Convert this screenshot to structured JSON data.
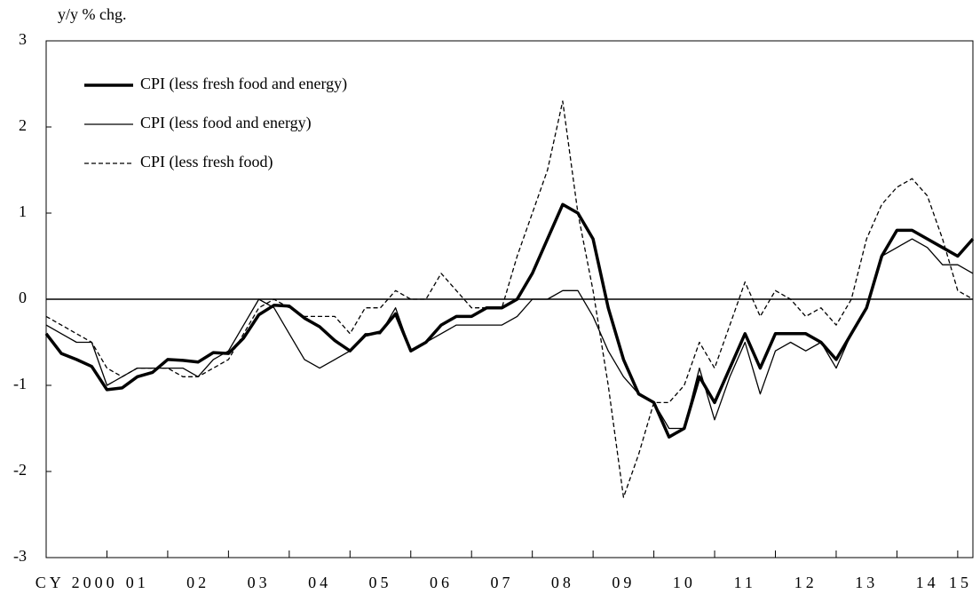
{
  "chart_data": {
    "type": "line",
    "y_label": "y/y % chg.",
    "categories": [
      "CY 2000",
      null,
      null,
      null,
      "01",
      null,
      null,
      null,
      "02",
      null,
      null,
      null,
      "03",
      null,
      null,
      null,
      "04",
      null,
      null,
      null,
      "05",
      null,
      null,
      null,
      "06",
      null,
      null,
      null,
      "07",
      null,
      null,
      null,
      "08",
      null,
      null,
      null,
      "09",
      null,
      null,
      null,
      "10",
      null,
      null,
      null,
      "11",
      null,
      null,
      null,
      "12",
      null,
      null,
      null,
      "13",
      null,
      null,
      null,
      "14",
      null,
      null,
      null,
      "15",
      null
    ],
    "series": [
      {
        "name": "CPI (less fresh food and energy)",
        "color": "#000000",
        "style": "thick",
        "values": [
          -0.4,
          -0.63,
          -0.7,
          -0.78,
          -1.05,
          -1.03,
          -0.9,
          -0.85,
          -0.7,
          -0.71,
          -0.73,
          -0.62,
          -0.63,
          -0.45,
          -0.18,
          -0.07,
          -0.08,
          -0.22,
          -0.32,
          -0.48,
          -0.6,
          -0.42,
          -0.38,
          -0.17,
          -0.6,
          -0.5,
          -0.3,
          -0.2,
          -0.2,
          -0.1,
          -0.1,
          0.0,
          0.3,
          0.7,
          1.1,
          1.0,
          0.7,
          -0.1,
          -0.7,
          -1.1,
          -1.2,
          -1.6,
          -1.5,
          -0.9,
          -1.2,
          -0.8,
          -0.4,
          -0.8,
          -0.4,
          -0.4,
          -0.4,
          -0.5,
          -0.7,
          -0.4,
          -0.1,
          0.5,
          0.8,
          0.8,
          0.7,
          0.6,
          0.5,
          0.7
        ]
      },
      {
        "name": "CPI (less food and energy)",
        "color": "#000000",
        "style": "thin",
        "values": [
          -0.3,
          -0.4,
          -0.5,
          -0.5,
          -1.0,
          -0.9,
          -0.8,
          -0.8,
          -0.8,
          -0.8,
          -0.9,
          -0.7,
          -0.6,
          -0.3,
          0.0,
          -0.1,
          -0.4,
          -0.7,
          -0.8,
          -0.7,
          -0.6,
          -0.4,
          -0.4,
          -0.1,
          -0.6,
          -0.5,
          -0.4,
          -0.3,
          -0.3,
          -0.3,
          -0.3,
          -0.2,
          0.0,
          0.0,
          0.1,
          0.1,
          -0.2,
          -0.6,
          -0.9,
          -1.1,
          -1.2,
          -1.5,
          -1.5,
          -0.8,
          -1.4,
          -0.9,
          -0.5,
          -1.1,
          -0.6,
          -0.5,
          -0.6,
          -0.5,
          -0.8,
          -0.4,
          -0.1,
          0.5,
          0.6,
          0.7,
          0.6,
          0.4,
          0.4,
          0.3
        ]
      },
      {
        "name": "CPI (less fresh food)",
        "color": "#000000",
        "style": "dashed",
        "values": [
          -0.2,
          -0.3,
          -0.4,
          -0.5,
          -0.8,
          -0.9,
          -0.8,
          -0.8,
          -0.8,
          -0.9,
          -0.9,
          -0.8,
          -0.7,
          -0.4,
          -0.1,
          0.0,
          -0.1,
          -0.2,
          -0.2,
          -0.2,
          -0.4,
          -0.1,
          -0.1,
          0.1,
          0.0,
          0.0,
          0.3,
          0.1,
          -0.1,
          -0.1,
          -0.1,
          0.5,
          1.0,
          1.5,
          2.3,
          1.0,
          0.1,
          -1.0,
          -2.3,
          -1.8,
          -1.2,
          -1.2,
          -1.0,
          -0.5,
          -0.8,
          -0.3,
          0.2,
          -0.2,
          0.1,
          0.0,
          -0.2,
          -0.1,
          -0.3,
          0.0,
          0.7,
          1.1,
          1.3,
          1.4,
          1.2,
          0.7,
          0.1,
          0.0
        ]
      }
    ],
    "ylim": [
      -3,
      3
    ],
    "yticks": [
      -3,
      -2,
      -1,
      0,
      1,
      2,
      3
    ],
    "zero_line": true,
    "legend": "upper left"
  }
}
